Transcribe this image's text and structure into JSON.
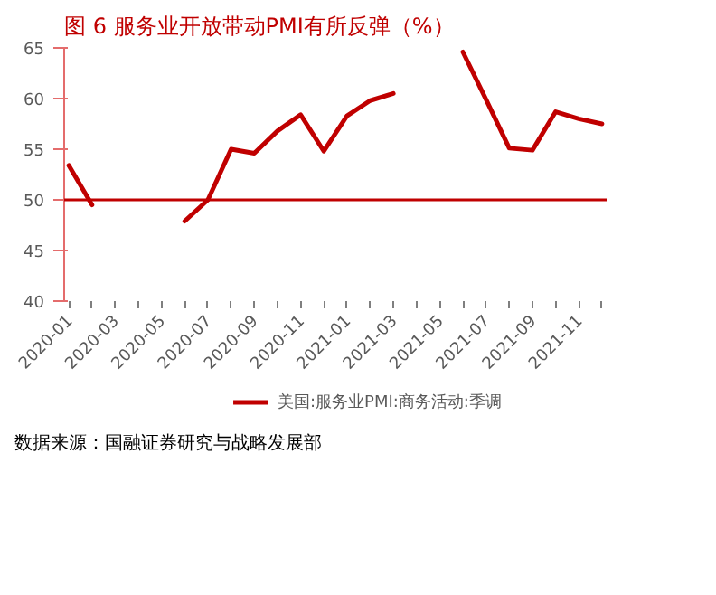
{
  "chart_data": {
    "type": "line",
    "title": "图 6 服务业开放带动PMI有所反弹（%）",
    "x": [
      "2020-01",
      "2020-02",
      "2020-03",
      "2020-04",
      "2020-05",
      "2020-06",
      "2020-07",
      "2020-08",
      "2020-09",
      "2020-10",
      "2020-11",
      "2020-12",
      "2021-01",
      "2021-02",
      "2021-03",
      "2021-04",
      "2021-05",
      "2021-06",
      "2021-07",
      "2021-08",
      "2021-09",
      "2021-10",
      "2021-11",
      "2021-12"
    ],
    "series": [
      {
        "name": "美国:服务业PMI:商务活动:季调",
        "color": "#c00000",
        "values": [
          53.4,
          49.5,
          null,
          null,
          null,
          47.9,
          50.0,
          55.0,
          54.6,
          56.8,
          58.4,
          54.8,
          58.3,
          59.8,
          60.5,
          null,
          null,
          64.6,
          59.9,
          55.1,
          54.9,
          58.7,
          58.0,
          57.5
        ]
      }
    ],
    "ylim": [
      40,
      65
    ],
    "yticks": [
      40,
      45,
      50,
      55,
      60,
      65
    ],
    "xlim": [
      "2020-01",
      "2021-12"
    ],
    "xticks": [
      "2020-01",
      {
        "value": "2020-02",
        "label": null
      },
      "2020-03",
      {
        "value": "2020-04",
        "label": null
      },
      "2020-05",
      {
        "value": "2020-06",
        "label": null
      },
      "2020-07",
      {
        "value": "2020-08",
        "label": null
      },
      "2020-09",
      {
        "value": "2020-10",
        "label": null
      },
      "2020-11",
      {
        "value": "2020-12",
        "label": null
      },
      "2021-01",
      {
        "value": "2021-02",
        "label": null
      },
      "2021-03",
      {
        "value": "2021-04",
        "label": null
      },
      "2021-05",
      {
        "value": "2021-06",
        "label": null
      },
      "2021-07",
      {
        "value": "2021-08",
        "label": null
      },
      "2021-09",
      {
        "value": "2021-10",
        "label": null
      },
      "2021-11",
      {
        "value": "2021-12",
        "label": null
      }
    ],
    "ref_lines": [
      {
        "axis": "y",
        "value": 50,
        "color": "#c00000"
      }
    ],
    "grid": false,
    "legend": "bottom",
    "marker": "none",
    "line_style": "solid",
    "annotations": [
      "数据来源：国融证券研究与战略发展部"
    ]
  }
}
